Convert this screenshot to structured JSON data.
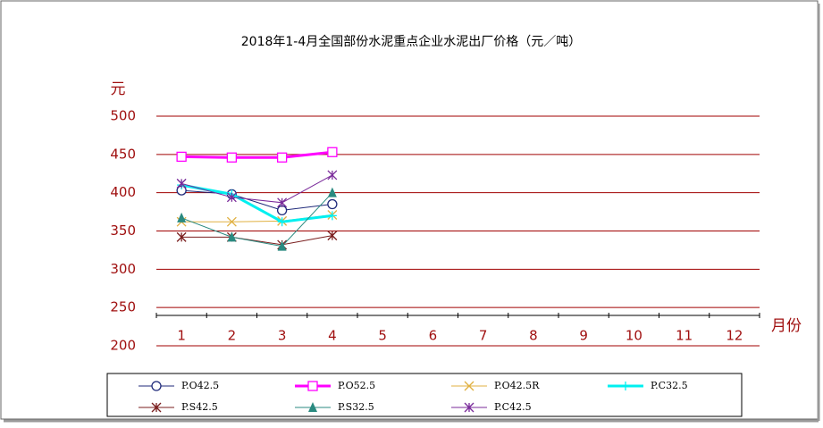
{
  "chart_data": {
    "type": "line",
    "title": "2018年1-4月全国部份水泥重点企业水泥出厂价格（元／吨）",
    "y_label": "元",
    "x_label": "月份",
    "categories": [
      "1",
      "2",
      "3",
      "4",
      "5",
      "6",
      "7",
      "8",
      "9",
      "10",
      "11",
      "12"
    ],
    "ylim": [
      200,
      500
    ],
    "yticks": [
      200,
      250,
      300,
      350,
      400,
      450,
      500
    ],
    "grid": true,
    "series": [
      {
        "name": "P.O42.5",
        "color": "#1f2a7a",
        "marker": "circle",
        "width": 1,
        "values": [
          403,
          398,
          377,
          385,
          null,
          null,
          null,
          null,
          null,
          null,
          null,
          null
        ]
      },
      {
        "name": "P.O52.5",
        "color": "#ff00ff",
        "marker": "square",
        "width": 3,
        "values": [
          447,
          446,
          446,
          453,
          null,
          null,
          null,
          null,
          null,
          null,
          null,
          null
        ]
      },
      {
        "name": "P.O42.5R",
        "color": "#e0b040",
        "marker": "x",
        "width": 1,
        "values": [
          362,
          362,
          363,
          371,
          null,
          null,
          null,
          null,
          null,
          null,
          null,
          null
        ]
      },
      {
        "name": "P.C32.5",
        "color": "#00f0f0",
        "marker": "plus",
        "width": 3,
        "values": [
          410,
          398,
          362,
          370,
          null,
          null,
          null,
          null,
          null,
          null,
          null,
          null
        ]
      },
      {
        "name": "P.S42.5",
        "color": "#7a1e1e",
        "marker": "asterisk",
        "width": 1,
        "values": [
          342,
          342,
          332,
          344,
          null,
          null,
          null,
          null,
          null,
          null,
          null,
          null
        ]
      },
      {
        "name": "P.S32.5",
        "color": "#2a8a80",
        "marker": "triangle",
        "width": 1,
        "values": [
          367,
          342,
          330,
          400,
          null,
          null,
          null,
          null,
          null,
          null,
          null,
          null
        ]
      },
      {
        "name": "P.C42.5",
        "color": "#7a2a9a",
        "marker": "asterisk",
        "width": 1,
        "values": [
          412,
          394,
          387,
          423,
          null,
          null,
          null,
          null,
          null,
          null,
          null,
          null
        ]
      }
    ]
  }
}
